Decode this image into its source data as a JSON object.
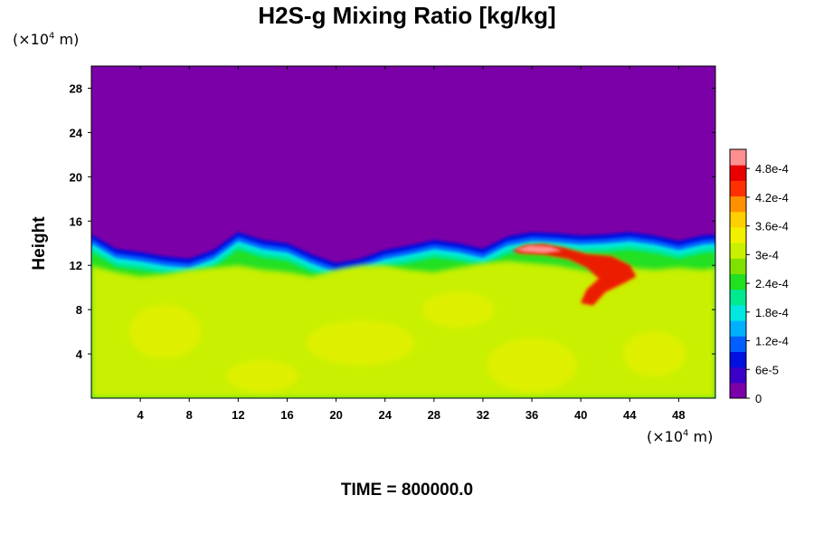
{
  "chart_data": {
    "type": "heatmap",
    "title": "H2S-g Mixing Ratio [kg/kg]",
    "ylabel": "Height",
    "x_unit": {
      "prefix": "(×10",
      "exp": "4",
      "suffix": " m)"
    },
    "y_unit": {
      "prefix": "(×10",
      "exp": "4",
      "suffix": " m)"
    },
    "xlim": [
      0,
      51
    ],
    "ylim": [
      0,
      30
    ],
    "x_ticks": [
      4,
      8,
      12,
      16,
      20,
      24,
      28,
      32,
      36,
      40,
      44,
      48
    ],
    "y_ticks": [
      4,
      8,
      12,
      16,
      20,
      24,
      28
    ],
    "colorbar": {
      "range": [
        0,
        0.00052
      ],
      "labels": [
        "0",
        "6e-5",
        "1.2e-4",
        "1.8e-4",
        "2.4e-4",
        "3e-4",
        "3.6e-4",
        "4.2e-4",
        "4.8e-4"
      ],
      "label_values": [
        0,
        6e-05,
        0.00012,
        0.00018,
        0.00024,
        0.0003,
        0.00036,
        0.00042,
        0.00048
      ],
      "colors": [
        "#7b00a8",
        "#3a00c8",
        "#0010e0",
        "#0060ff",
        "#00b0ff",
        "#00e8e0",
        "#00e890",
        "#20e020",
        "#80e000",
        "#c8f000",
        "#f0f000",
        "#ffd000",
        "#ff9000",
        "#ff3000",
        "#e80000",
        "#ff9090"
      ]
    },
    "interface_top": [
      [
        0,
        14.8
      ],
      [
        2,
        13.5
      ],
      [
        4,
        13.2
      ],
      [
        6,
        12.8
      ],
      [
        8,
        12.6
      ],
      [
        10,
        13.4
      ],
      [
        12,
        15.0
      ],
      [
        14,
        14.3
      ],
      [
        16,
        14.0
      ],
      [
        18,
        13.0
      ],
      [
        20,
        12.2
      ],
      [
        22,
        12.6
      ],
      [
        24,
        13.4
      ],
      [
        26,
        13.8
      ],
      [
        28,
        14.3
      ],
      [
        30,
        14.0
      ],
      [
        32,
        13.5
      ],
      [
        34,
        14.6
      ],
      [
        36,
        15.0
      ],
      [
        38,
        14.9
      ],
      [
        40,
        14.7
      ],
      [
        42,
        14.8
      ],
      [
        44,
        15.0
      ],
      [
        46,
        14.7
      ],
      [
        48,
        14.2
      ],
      [
        50,
        14.7
      ],
      [
        51,
        14.8
      ]
    ],
    "interface_bottom": [
      [
        0,
        12.0
      ],
      [
        2,
        11.4
      ],
      [
        4,
        11.0
      ],
      [
        6,
        11.2
      ],
      [
        8,
        11.6
      ],
      [
        10,
        11.8
      ],
      [
        12,
        12.0
      ],
      [
        14,
        11.6
      ],
      [
        16,
        11.4
      ],
      [
        18,
        11.0
      ],
      [
        20,
        11.6
      ],
      [
        22,
        12.0
      ],
      [
        24,
        12.0
      ],
      [
        26,
        11.6
      ],
      [
        28,
        11.4
      ],
      [
        30,
        11.8
      ],
      [
        32,
        12.2
      ],
      [
        34,
        12.4
      ],
      [
        36,
        12.2
      ],
      [
        38,
        12.0
      ],
      [
        40,
        11.6
      ],
      [
        42,
        11.2
      ],
      [
        44,
        11.8
      ],
      [
        46,
        11.6
      ],
      [
        48,
        11.8
      ],
      [
        50,
        11.6
      ],
      [
        51,
        11.8
      ]
    ],
    "high_plume": [
      [
        34.4,
        13.3
      ],
      [
        35.5,
        13.8
      ],
      [
        37.0,
        13.9
      ],
      [
        38.5,
        13.6
      ],
      [
        40.5,
        13.0
      ],
      [
        42.5,
        12.8
      ],
      [
        44.0,
        12.0
      ],
      [
        44.5,
        11.0
      ],
      [
        43.5,
        10.4
      ],
      [
        42.0,
        9.6
      ],
      [
        41.0,
        8.4
      ],
      [
        40.0,
        8.6
      ],
      [
        40.5,
        9.8
      ],
      [
        41.5,
        10.8
      ],
      [
        40.5,
        11.8
      ],
      [
        39.0,
        12.6
      ],
      [
        37.0,
        13.0
      ],
      [
        35.0,
        13.1
      ]
    ],
    "peak_plume": [
      [
        34.6,
        13.4
      ],
      [
        35.8,
        13.8
      ],
      [
        37.5,
        13.7
      ],
      [
        38.5,
        13.3
      ],
      [
        37.0,
        13.1
      ],
      [
        35.5,
        13.2
      ]
    ]
  },
  "time_label": "TIME = 800000.0"
}
